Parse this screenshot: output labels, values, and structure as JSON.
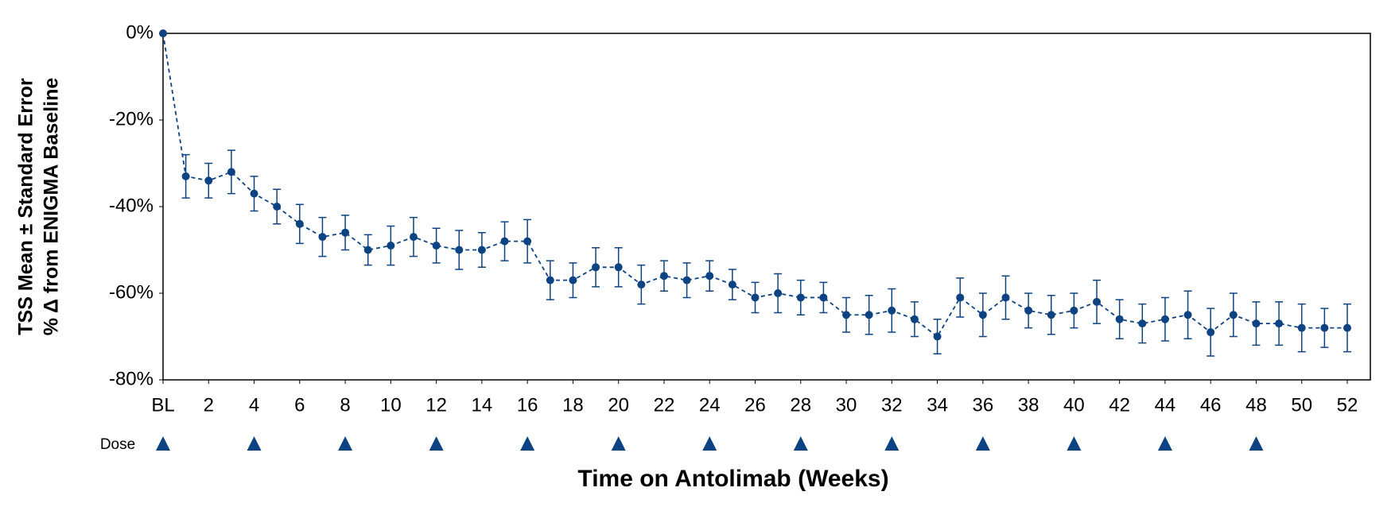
{
  "chart_data": {
    "type": "line",
    "x_label": "Time on Antolimab (Weeks)",
    "y_label": [
      "TSS Mean ± Standard Error",
      "% Δ from ENIGMA Baseline"
    ],
    "x": [
      0,
      1,
      2,
      3,
      4,
      5,
      6,
      7,
      8,
      9,
      10,
      11,
      12,
      13,
      14,
      15,
      16,
      17,
      18,
      19,
      20,
      21,
      22,
      23,
      24,
      25,
      26,
      27,
      28,
      29,
      30,
      31,
      32,
      33,
      34,
      35,
      36,
      37,
      38,
      39,
      40,
      41,
      42,
      43,
      44,
      45,
      46,
      47,
      48,
      49,
      50,
      51,
      52
    ],
    "series": [
      {
        "color": "#0d4383",
        "values": [
          0,
          -33,
          -34,
          -32,
          -37,
          -40,
          -44,
          -47,
          -46,
          -50,
          -49,
          -47,
          -49,
          -50,
          -50,
          -48,
          -48,
          -57,
          -57,
          -54,
          -54,
          -58,
          -56,
          -57,
          -56,
          -58,
          -61,
          -60,
          -61,
          -61,
          -65,
          -65,
          -64,
          -66,
          -70,
          -61,
          -65,
          -61,
          -64,
          -65,
          -64,
          -62,
          -66,
          -67,
          -66,
          -65,
          -69,
          -65,
          -67,
          -67,
          -68,
          -68,
          -68
        ],
        "errors": [
          null,
          5,
          4,
          5,
          4,
          4,
          4.5,
          4.5,
          4,
          3.5,
          4.5,
          4.5,
          4,
          4.5,
          4,
          4.5,
          5,
          4.5,
          4,
          4.5,
          4.5,
          4.5,
          3.5,
          4,
          3.5,
          3.5,
          3.5,
          4.5,
          4,
          3.5,
          4,
          4.5,
          5,
          4,
          4,
          4.5,
          5,
          5,
          4,
          4.5,
          4,
          5,
          4.5,
          4.5,
          5,
          5.5,
          5.5,
          5,
          5,
          5,
          5.5,
          4.5,
          5.5
        ]
      }
    ],
    "xlim": [
      0,
      53
    ],
    "xticks": [
      {
        "value": 0,
        "label": "BL"
      },
      2,
      4,
      6,
      8,
      10,
      12,
      14,
      16,
      18,
      20,
      22,
      24,
      26,
      28,
      30,
      32,
      34,
      36,
      38,
      40,
      42,
      44,
      46,
      48,
      50,
      52
    ],
    "ylim": [
      -80,
      0
    ],
    "yticks": [
      {
        "value": 0,
        "label": "0%"
      },
      {
        "value": -20,
        "label": "-20%"
      },
      {
        "value": -40,
        "label": "-40%"
      },
      {
        "value": -60,
        "label": "-60%"
      },
      {
        "value": -80,
        "label": "-80%"
      }
    ],
    "dose_label": "Dose",
    "dose_weeks": [
      0,
      4,
      8,
      12,
      16,
      20,
      24,
      28,
      32,
      36,
      40,
      44,
      48
    ],
    "grid": false
  }
}
